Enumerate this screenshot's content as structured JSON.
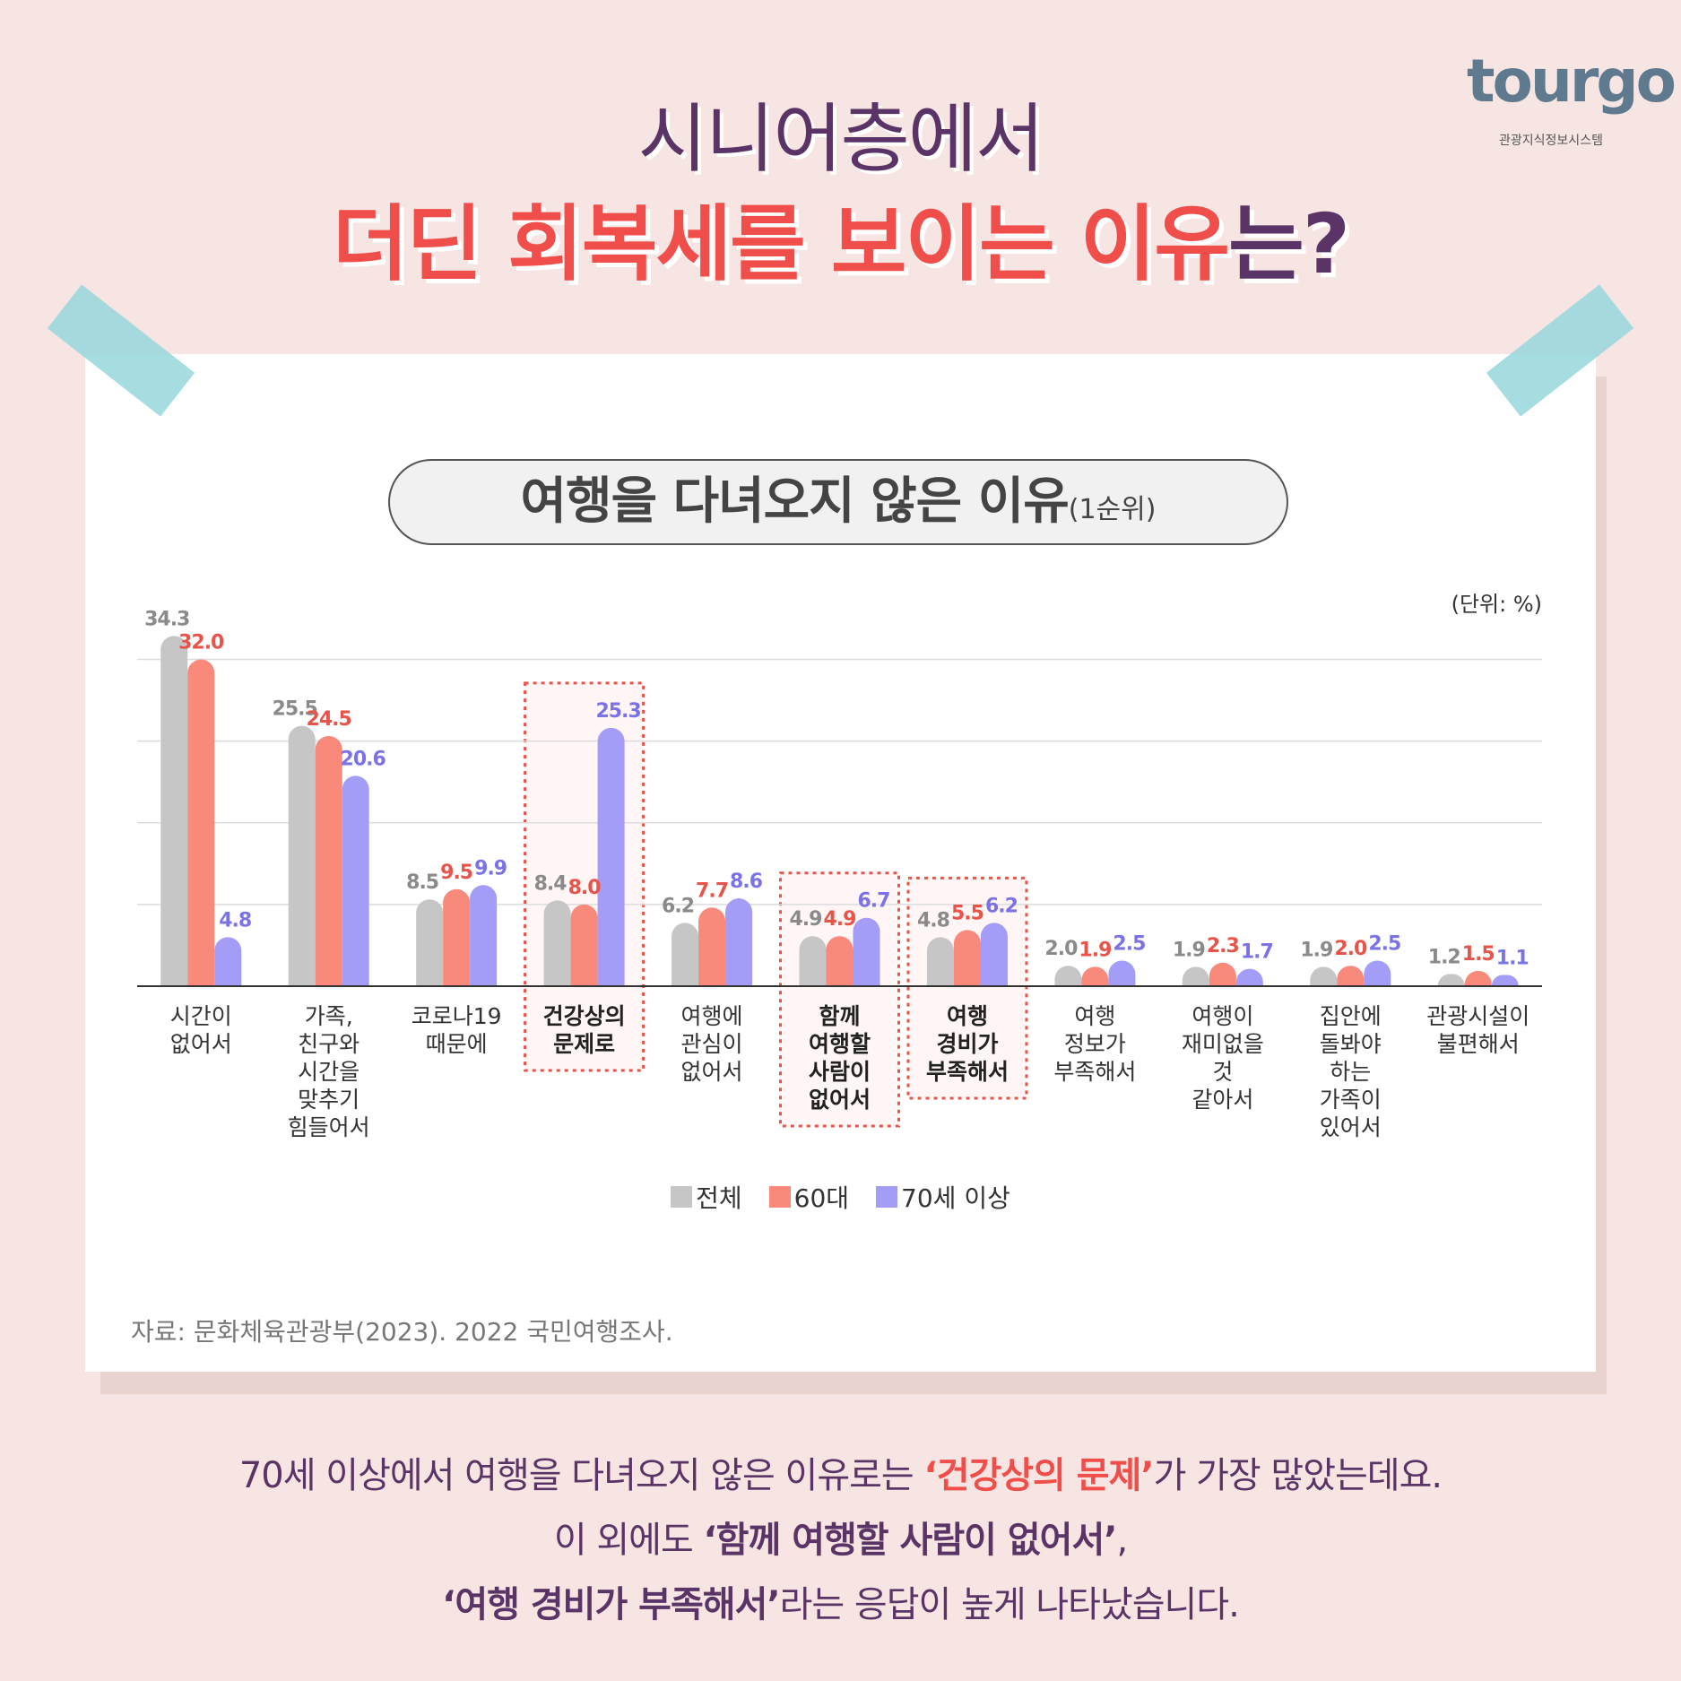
{
  "logo": {
    "name": "tourgo",
    "subtitle": "관광지식정보시스템"
  },
  "header": {
    "title_line1": "시니어층에서",
    "title_line2_highlight": "더딘 회복세를 보이는 이유",
    "title_line2_end": "는?"
  },
  "chart_data": {
    "type": "bar",
    "title": "여행을 다녀오지 않은 이유",
    "subtitle": "(1순위)",
    "unit": "(단위: %)",
    "categories": [
      "시간이\n없어서",
      "가족,\n친구와\n시간을\n맞추기\n힘들어서",
      "코로나19\n때문에",
      "건강상의\n문제로",
      "여행에\n관심이\n없어서",
      "함께\n여행할\n사람이\n없어서",
      "여행\n경비가\n부족해서",
      "여행\n정보가\n부족해서",
      "여행이\n재미없을\n것\n같아서",
      "집안에\n돌봐야\n하는\n가족이\n있어서",
      "관광시설이\n불편해서"
    ],
    "series": [
      {
        "name": "전체",
        "color": "#c6c6c6",
        "label_color": "#8a8a8a",
        "values": [
          34.3,
          25.5,
          8.5,
          8.4,
          6.2,
          4.9,
          4.8,
          2.0,
          1.9,
          1.9,
          1.2
        ],
        "value_labels": [
          "34.3",
          "25.5",
          "8.5",
          "8.4",
          "6.2",
          "4.9",
          "4.8",
          "2.0",
          "1.9",
          "1.9",
          "1.2"
        ]
      },
      {
        "name": "60대",
        "color": "#f8897b",
        "label_color": "#e8544a",
        "values": [
          32.0,
          24.5,
          9.5,
          8.0,
          7.7,
          4.9,
          5.5,
          1.9,
          2.3,
          2.0,
          1.5
        ],
        "value_labels": [
          "32.0",
          "24.5",
          "9.5",
          "8.0",
          "7.7",
          "4.9",
          "5.5",
          "1.9",
          "2.3",
          "2.0",
          "1.5"
        ]
      },
      {
        "name": "70세 이상",
        "color": "#a39df7",
        "label_color": "#7b72e8",
        "values": [
          4.8,
          20.6,
          9.9,
          25.3,
          8.6,
          6.7,
          6.2,
          2.5,
          1.7,
          2.5,
          1.1
        ],
        "value_labels": [
          "4.8",
          "20.6",
          "9.9",
          "25.3",
          "8.6",
          "6.7",
          "6.2",
          "2.5",
          "1.7",
          "2.5",
          "1.1"
        ]
      }
    ],
    "ylim": [
      0,
      36
    ],
    "yticks": [
      8,
      16,
      24,
      32
    ],
    "grid": true,
    "highlight": [
      3,
      5,
      6
    ],
    "legend": "bottom",
    "source": "자료: 문화체육관광부(2023). 2022 국민여행조사."
  },
  "summary": {
    "lines": [
      [
        {
          "text": "70세 이상에서 여행을 다녀오지 않은 이유로는 "
        },
        {
          "text": "‘건강상의 문제’",
          "bold": true,
          "color": "#f04e4a"
        },
        {
          "text": "가 가장 많았는데요."
        }
      ],
      [
        {
          "text": "이 외에도 "
        },
        {
          "text": "‘함께 여행할 사람이 없어서’",
          "bold": true
        },
        {
          "text": ","
        }
      ],
      [
        {
          "text": "‘여행 경비가 부족해서’",
          "bold": true
        },
        {
          "text": "라는 응답이 높게 나타났습니다."
        }
      ]
    ]
  }
}
